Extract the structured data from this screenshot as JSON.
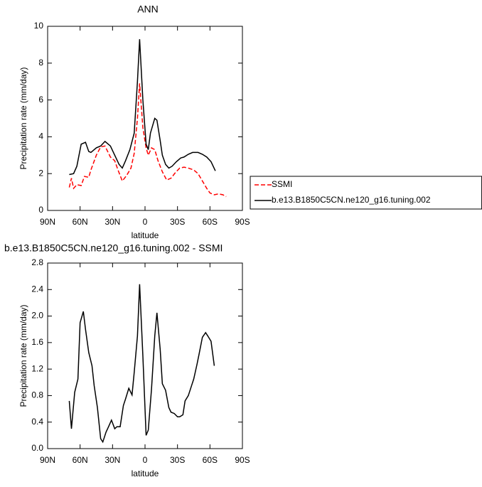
{
  "chart_data": [
    {
      "type": "line",
      "title": "ANN",
      "xlabel": "latitude",
      "ylabel": "Precipitation rate (mm/day)",
      "xlim": [
        90,
        -90
      ],
      "xticks": [
        {
          "value": 90,
          "label": "90N"
        },
        {
          "value": 60,
          "label": "60N"
        },
        {
          "value": 30,
          "label": "30N"
        },
        0,
        {
          "value": -30,
          "label": "30S"
        },
        {
          "value": -60,
          "label": "60S"
        },
        {
          "value": -90,
          "label": "90S"
        }
      ],
      "ylim": [
        0,
        10
      ],
      "yticks": [
        0,
        2,
        4,
        6,
        8,
        10
      ],
      "legend": "right",
      "series": [
        {
          "name": "SSMI",
          "color": "#ff0000",
          "style": "dashed",
          "x": [
            70,
            68,
            66,
            63,
            59,
            56,
            52,
            50,
            45,
            41,
            37,
            32,
            28,
            25,
            21,
            17,
            13,
            10,
            7,
            5,
            2,
            -1,
            -3,
            -6,
            -9,
            -12,
            -16,
            -20,
            -24,
            -28,
            -32,
            -36,
            -40,
            -45,
            -49,
            -53,
            -57,
            -60,
            -64,
            -68,
            -72,
            -75
          ],
          "values": [
            1.25,
            1.75,
            1.2,
            1.4,
            1.35,
            1.85,
            1.8,
            2.2,
            3.0,
            3.45,
            3.5,
            2.9,
            2.7,
            2.2,
            1.6,
            1.9,
            2.3,
            3.1,
            5.0,
            6.9,
            4.5,
            3.4,
            3.0,
            3.4,
            3.3,
            2.7,
            2.1,
            1.65,
            1.75,
            2.05,
            2.3,
            2.35,
            2.3,
            2.2,
            2.0,
            1.6,
            1.2,
            0.95,
            0.85,
            0.9,
            0.85,
            0.75
          ]
        },
        {
          "name": "b.e13.B1850C5CN.ne120_g16.tuning.002",
          "color": "#000000",
          "style": "solid",
          "x": [
            70,
            66,
            63,
            59,
            55,
            52,
            50,
            45,
            41,
            37,
            32,
            28,
            24,
            21,
            18,
            14,
            10,
            7,
            5,
            2,
            -1,
            -3,
            -5,
            -9,
            -11,
            -14,
            -16,
            -19,
            -22,
            -25,
            -29,
            -33,
            -36,
            -40,
            -44,
            -49,
            -53,
            -57,
            -61,
            -65
          ],
          "values": [
            1.95,
            2.0,
            2.4,
            3.6,
            3.7,
            3.2,
            3.15,
            3.4,
            3.5,
            3.75,
            3.5,
            3.0,
            2.5,
            2.3,
            2.7,
            3.3,
            4.2,
            7.0,
            9.3,
            6.0,
            3.6,
            3.3,
            4.2,
            5.0,
            4.9,
            3.8,
            3.0,
            2.5,
            2.3,
            2.4,
            2.65,
            2.85,
            2.9,
            3.05,
            3.15,
            3.15,
            3.05,
            2.9,
            2.65,
            2.15
          ]
        }
      ]
    },
    {
      "type": "line",
      "title": "b.e13.B1850C5CN.ne120_g16.tuning.002 - SSMI",
      "xlabel": "latitude",
      "ylabel": "Precipitation rate (mm/day)",
      "xlim": [
        90,
        -90
      ],
      "xticks": [
        {
          "value": 90,
          "label": "90N"
        },
        {
          "value": 60,
          "label": "60N"
        },
        {
          "value": 30,
          "label": "30N"
        },
        0,
        {
          "value": -30,
          "label": "30S"
        },
        {
          "value": -60,
          "label": "60S"
        },
        {
          "value": -90,
          "label": "90S"
        }
      ],
      "ylim": [
        0,
        2.8
      ],
      "yticks": [
        {
          "value": 0,
          "label": "0.0"
        },
        0.4,
        0.8,
        1.2,
        1.6,
        {
          "value": 2,
          "label": "2.0"
        },
        2.4,
        2.8
      ],
      "color": "#000000",
      "x": [
        70,
        68,
        65,
        62,
        60,
        57,
        55,
        52,
        49,
        47,
        44,
        41,
        39,
        36,
        34,
        31,
        28,
        26,
        23,
        20,
        18,
        15,
        12,
        10,
        7,
        5,
        2,
        -1,
        -3,
        -6,
        -9,
        -11,
        -14,
        -16,
        -19,
        -22,
        -24,
        -27,
        -30,
        -32,
        -35,
        -37,
        -40,
        -43,
        -45,
        -48,
        -50,
        -53,
        -56,
        -58,
        -61,
        -64
      ],
      "values": [
        0.72,
        0.3,
        0.85,
        1.05,
        1.9,
        2.07,
        1.8,
        1.45,
        1.25,
        0.95,
        0.62,
        0.15,
        0.1,
        0.25,
        0.32,
        0.43,
        0.3,
        0.33,
        0.33,
        0.65,
        0.75,
        0.91,
        0.81,
        1.15,
        1.7,
        2.48,
        1.4,
        0.2,
        0.28,
        0.9,
        1.7,
        2.05,
        1.5,
        0.98,
        0.88,
        0.62,
        0.55,
        0.53,
        0.48,
        0.48,
        0.51,
        0.72,
        0.8,
        0.95,
        1.05,
        1.27,
        1.43,
        1.68,
        1.75,
        1.7,
        1.62,
        1.25
      ]
    }
  ]
}
